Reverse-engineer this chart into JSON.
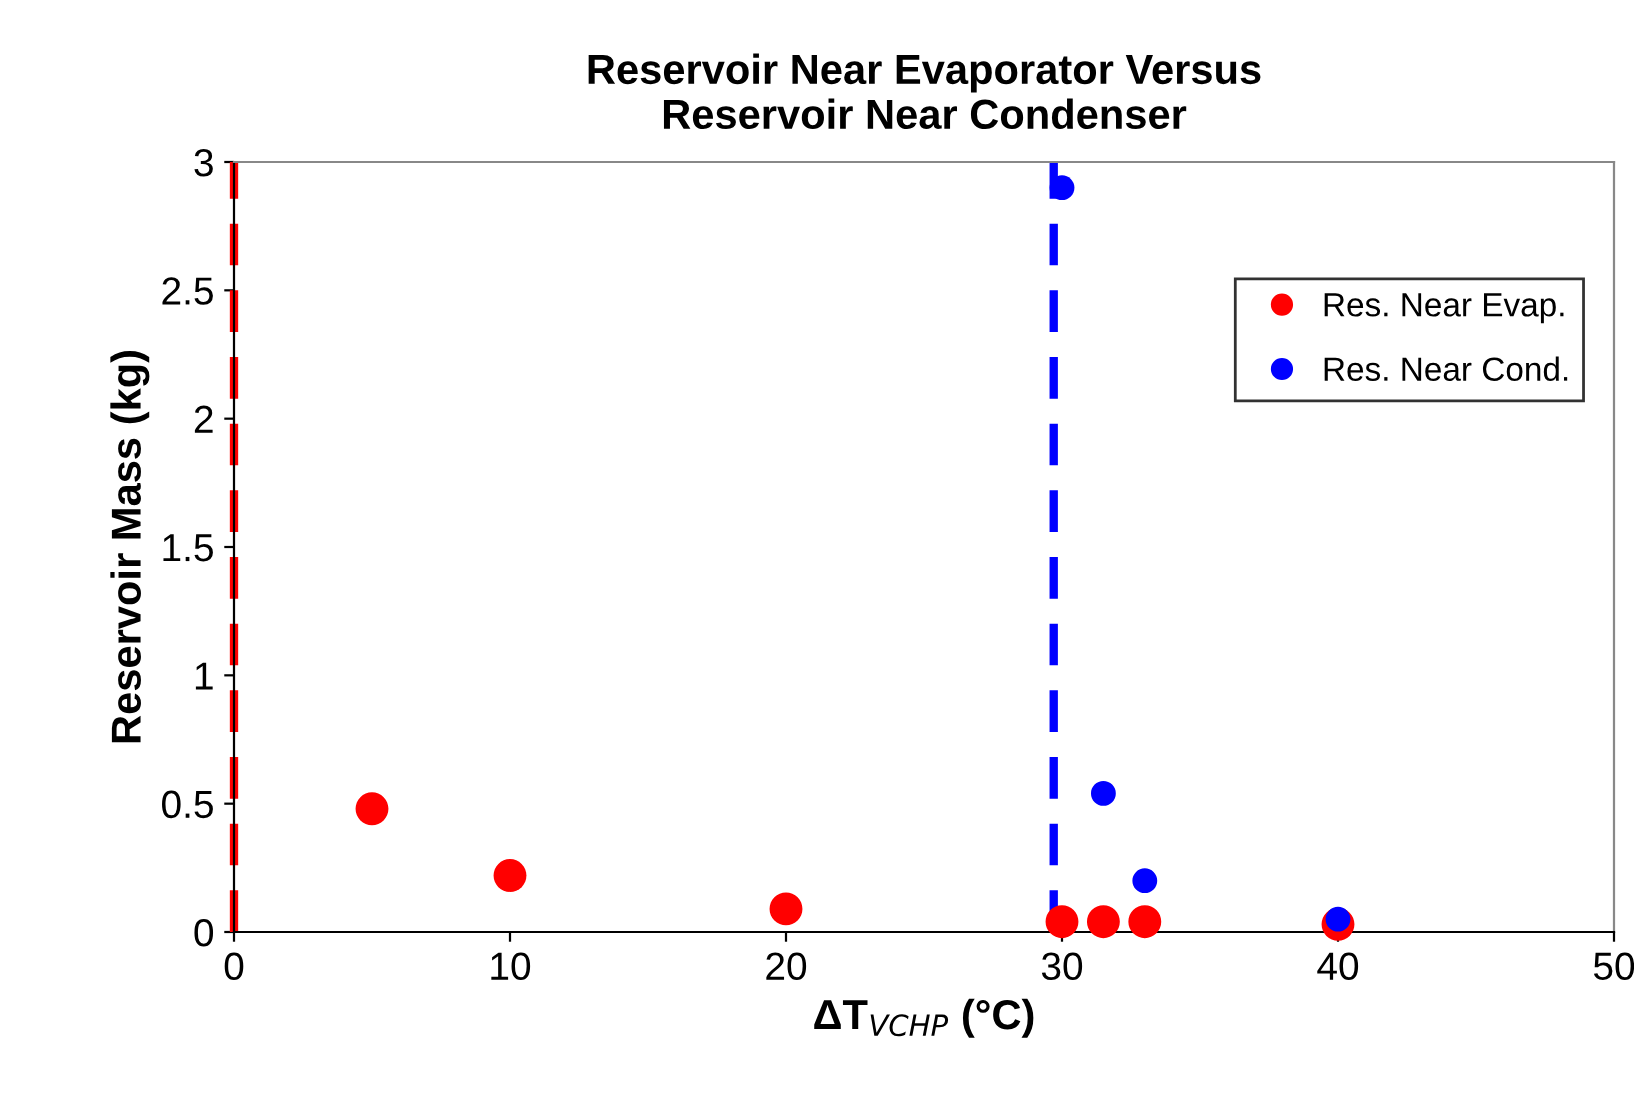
{
  "chart_data": {
    "type": "scatter",
    "title": "Reservoir Near Evaporator Versus\nReservoir Near Condenser",
    "xlabel": "ΔT$_{VCHP}$ (°C)",
    "ylabel": "Reservoir Mass (kg)",
    "series": [
      {
        "name": "Res. Near Evap.",
        "color": "#ff0000",
        "x": [
          5,
          10,
          20,
          30,
          31.5,
          33,
          40
        ],
        "values": [
          0.48,
          0.22,
          0.09,
          0.04,
          0.04,
          0.04,
          0.03
        ]
      },
      {
        "name": "Res. Near Cond.",
        "color": "#0000ff",
        "x": [
          30,
          31.5,
          33,
          40
        ],
        "values": [
          2.9,
          0.54,
          0.2,
          0.05
        ]
      }
    ],
    "ref_lines": [
      {
        "axis": "x",
        "value": 0,
        "color": "#ff0000",
        "line_style": "dashed"
      },
      {
        "axis": "x",
        "value": 29.7,
        "color": "#0000ff",
        "line_style": "dashed"
      }
    ],
    "xlim": [
      0,
      50
    ],
    "xticks": [
      0,
      10,
      20,
      30,
      40,
      50
    ],
    "ylim": [
      0,
      3
    ],
    "yticks": [
      0,
      0.5,
      1,
      1.5,
      2,
      2.5,
      3
    ],
    "marker": "circle",
    "grid": false,
    "legend": "top right"
  }
}
